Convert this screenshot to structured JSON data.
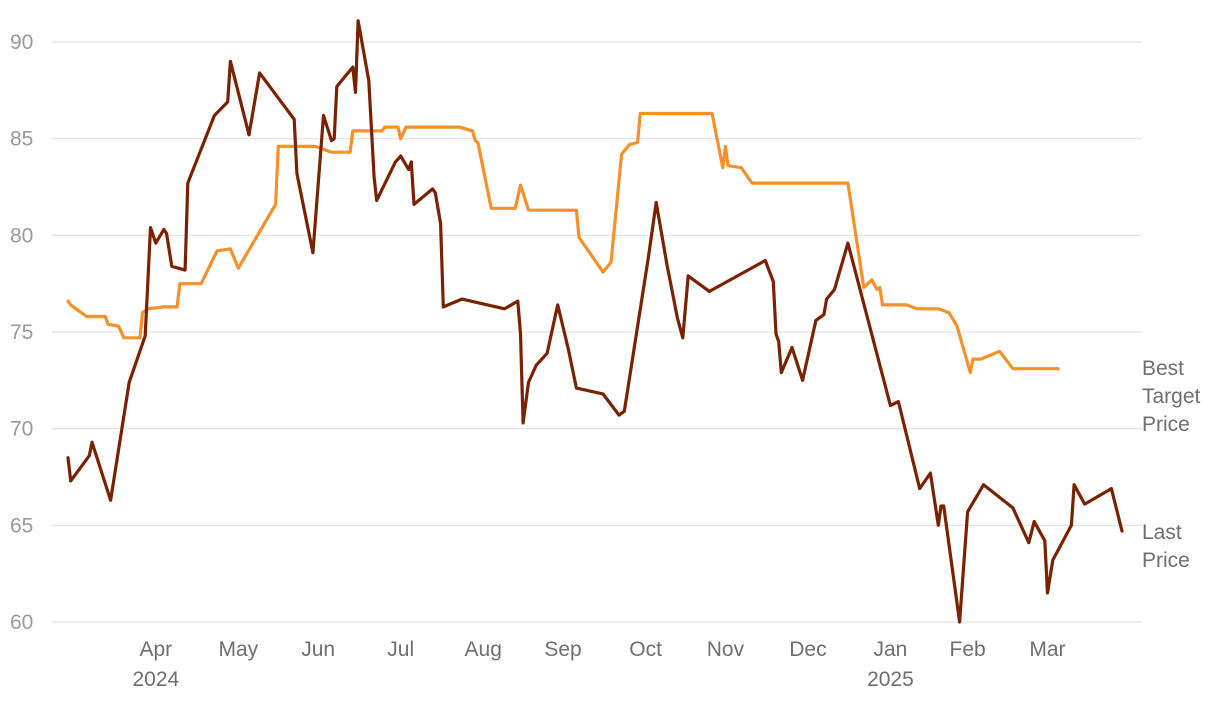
{
  "chart_data": {
    "type": "line",
    "ylim": [
      60,
      91
    ],
    "y_ticks": [
      "90",
      "85",
      "80",
      "75",
      "70",
      "65",
      "60"
    ],
    "x_ticks": [
      {
        "label": "Apr",
        "sub": "2024"
      },
      {
        "label": "May",
        "sub": ""
      },
      {
        "label": "Jun",
        "sub": ""
      },
      {
        "label": "Jul",
        "sub": ""
      },
      {
        "label": "Aug",
        "sub": ""
      },
      {
        "label": "Sep",
        "sub": ""
      },
      {
        "label": "Oct",
        "sub": ""
      },
      {
        "label": "Nov",
        "sub": ""
      },
      {
        "label": "Dec",
        "sub": ""
      },
      {
        "label": "Jan",
        "sub": "2025"
      },
      {
        "label": "Feb",
        "sub": ""
      },
      {
        "label": "Mar",
        "sub": ""
      }
    ],
    "grid": true,
    "legend_position": "right, inline at series end",
    "series": [
      {
        "name": "Best Target Price",
        "legend_lines": [
          "Best",
          "Target",
          "Price"
        ],
        "color": "#f5902a",
        "points": [
          [
            "2024-03-13",
            76.6
          ],
          [
            "2024-03-14",
            76.4
          ],
          [
            "2024-03-20",
            75.8
          ],
          [
            "2024-03-27",
            75.8
          ],
          [
            "2024-03-28",
            75.4
          ],
          [
            "2024-04-01",
            75.3
          ],
          [
            "2024-04-03",
            74.7
          ],
          [
            "2024-04-09",
            74.7
          ],
          [
            "2024-04-10",
            76.0
          ],
          [
            "2024-04-12",
            76.2
          ],
          [
            "2024-04-18",
            76.3
          ],
          [
            "2024-04-23",
            76.3
          ],
          [
            "2024-04-24",
            77.5
          ],
          [
            "2024-05-02",
            77.5
          ],
          [
            "2024-05-08",
            79.2
          ],
          [
            "2024-05-13",
            79.3
          ],
          [
            "2024-05-16",
            78.3
          ],
          [
            "2024-05-30",
            81.6
          ],
          [
            "2024-05-31",
            84.6
          ],
          [
            "2024-06-14",
            84.6
          ],
          [
            "2024-06-20",
            84.3
          ],
          [
            "2024-06-27",
            84.3
          ],
          [
            "2024-06-28",
            85.4
          ],
          [
            "2024-07-09",
            85.4
          ],
          [
            "2024-07-10",
            85.6
          ],
          [
            "2024-07-15",
            85.6
          ],
          [
            "2024-07-16",
            85.0
          ],
          [
            "2024-07-18",
            85.6
          ],
          [
            "2024-08-07",
            85.6
          ],
          [
            "2024-08-12",
            85.4
          ],
          [
            "2024-08-13",
            84.9
          ],
          [
            "2024-08-14",
            84.8
          ],
          [
            "2024-08-19",
            81.4
          ],
          [
            "2024-08-28",
            81.4
          ],
          [
            "2024-08-30",
            82.6
          ],
          [
            "2024-09-02",
            81.3
          ],
          [
            "2024-09-20",
            81.3
          ],
          [
            "2024-09-21",
            79.9
          ],
          [
            "2024-09-30",
            78.1
          ],
          [
            "2024-10-03",
            78.6
          ],
          [
            "2024-10-07",
            84.2
          ],
          [
            "2024-10-10",
            84.7
          ],
          [
            "2024-10-13",
            84.8
          ],
          [
            "2024-10-14",
            86.3
          ],
          [
            "2024-11-10",
            86.3
          ],
          [
            "2024-11-14",
            83.5
          ],
          [
            "2024-11-15",
            84.6
          ],
          [
            "2024-11-16",
            83.6
          ],
          [
            "2024-11-21",
            83.5
          ],
          [
            "2024-11-25",
            82.7
          ],
          [
            "2024-12-31",
            82.7
          ],
          [
            "2025-01-06",
            77.3
          ],
          [
            "2025-01-09",
            77.7
          ],
          [
            "2025-01-11",
            77.2
          ],
          [
            "2025-01-12",
            77.3
          ],
          [
            "2025-01-13",
            76.4
          ],
          [
            "2025-01-22",
            76.4
          ],
          [
            "2025-01-26",
            76.2
          ],
          [
            "2025-02-03",
            76.2
          ],
          [
            "2025-02-07",
            76.0
          ],
          [
            "2025-02-10",
            75.3
          ],
          [
            "2025-02-15",
            72.9
          ],
          [
            "2025-02-16",
            73.6
          ],
          [
            "2025-02-19",
            73.6
          ],
          [
            "2025-02-26",
            74.0
          ],
          [
            "2025-03-03",
            73.1
          ],
          [
            "2025-03-20",
            73.1
          ]
        ]
      },
      {
        "name": "Last Price",
        "legend_lines": [
          "Last",
          "Price"
        ],
        "color": "#7a2200",
        "points": [
          [
            "2024-03-13",
            68.5
          ],
          [
            "2024-03-14",
            67.3
          ],
          [
            "2024-03-21",
            68.6
          ],
          [
            "2024-03-22",
            69.3
          ],
          [
            "2024-03-29",
            66.3
          ],
          [
            "2024-04-05",
            72.4
          ],
          [
            "2024-04-11",
            74.8
          ],
          [
            "2024-04-13",
            80.4
          ],
          [
            "2024-04-15",
            79.6
          ],
          [
            "2024-04-18",
            80.3
          ],
          [
            "2024-04-19",
            80.1
          ],
          [
            "2024-04-21",
            78.4
          ],
          [
            "2024-04-26",
            78.2
          ],
          [
            "2024-04-27",
            82.7
          ],
          [
            "2024-05-07",
            86.2
          ],
          [
            "2024-05-12",
            86.9
          ],
          [
            "2024-05-13",
            89.0
          ],
          [
            "2024-05-20",
            85.2
          ],
          [
            "2024-05-24",
            88.4
          ],
          [
            "2024-06-06",
            86.0
          ],
          [
            "2024-06-07",
            83.2
          ],
          [
            "2024-06-13",
            79.1
          ],
          [
            "2024-06-17",
            86.2
          ],
          [
            "2024-06-20",
            84.9
          ],
          [
            "2024-06-21",
            85.0
          ],
          [
            "2024-06-22",
            87.7
          ],
          [
            "2024-06-28",
            88.7
          ],
          [
            "2024-06-29",
            87.4
          ],
          [
            "2024-06-30",
            91.1
          ],
          [
            "2024-07-04",
            88.0
          ],
          [
            "2024-07-06",
            83.0
          ],
          [
            "2024-07-07",
            81.8
          ],
          [
            "2024-07-14",
            83.8
          ],
          [
            "2024-07-16",
            84.1
          ],
          [
            "2024-07-19",
            83.4
          ],
          [
            "2024-07-20",
            83.8
          ],
          [
            "2024-07-21",
            81.6
          ],
          [
            "2024-07-28",
            82.4
          ],
          [
            "2024-07-29",
            82.2
          ],
          [
            "2024-07-31",
            80.6
          ],
          [
            "2024-08-01",
            76.3
          ],
          [
            "2024-08-08",
            76.7
          ],
          [
            "2024-08-24",
            76.2
          ],
          [
            "2024-08-29",
            76.6
          ],
          [
            "2024-08-30",
            74.9
          ],
          [
            "2024-08-31",
            70.3
          ],
          [
            "2024-09-02",
            72.4
          ],
          [
            "2024-09-05",
            73.3
          ],
          [
            "2024-09-09",
            73.9
          ],
          [
            "2024-09-13",
            76.4
          ],
          [
            "2024-09-17",
            74.1
          ],
          [
            "2024-09-20",
            72.1
          ],
          [
            "2024-09-30",
            71.8
          ],
          [
            "2024-10-06",
            70.7
          ],
          [
            "2024-10-08",
            70.9
          ],
          [
            "2024-10-17",
            78.8
          ],
          [
            "2024-10-20",
            81.7
          ],
          [
            "2024-10-24",
            78.5
          ],
          [
            "2024-10-28",
            75.7
          ],
          [
            "2024-10-30",
            74.7
          ],
          [
            "2024-11-01",
            77.9
          ],
          [
            "2024-11-09",
            77.1
          ],
          [
            "2024-11-30",
            78.7
          ],
          [
            "2024-12-03",
            77.6
          ],
          [
            "2024-12-04",
            74.9
          ],
          [
            "2024-12-05",
            74.5
          ],
          [
            "2024-12-06",
            72.9
          ],
          [
            "2024-12-10",
            74.2
          ],
          [
            "2024-12-14",
            72.5
          ],
          [
            "2024-12-19",
            75.6
          ],
          [
            "2024-12-22",
            75.9
          ],
          [
            "2024-12-23",
            76.7
          ],
          [
            "2024-12-26",
            77.2
          ],
          [
            "2024-12-31",
            79.6
          ],
          [
            "2025-01-16",
            71.2
          ],
          [
            "2025-01-19",
            71.4
          ],
          [
            "2025-01-27",
            66.9
          ],
          [
            "2025-01-31",
            67.7
          ],
          [
            "2025-02-03",
            65.0
          ],
          [
            "2025-02-04",
            66.0
          ],
          [
            "2025-02-05",
            66.0
          ],
          [
            "2025-02-11",
            60.0
          ],
          [
            "2025-02-14",
            65.7
          ],
          [
            "2025-02-20",
            67.1
          ],
          [
            "2025-03-03",
            65.9
          ],
          [
            "2025-03-09",
            64.1
          ],
          [
            "2025-03-11",
            65.2
          ],
          [
            "2025-03-15",
            64.2
          ],
          [
            "2025-03-16",
            61.5
          ],
          [
            "2025-03-18",
            63.2
          ],
          [
            "2025-03-25",
            65.0
          ],
          [
            "2025-03-26",
            67.1
          ],
          [
            "2025-03-30",
            66.1
          ],
          [
            "2025-04-09",
            66.9
          ],
          [
            "2025-04-13",
            64.7
          ]
        ]
      }
    ]
  }
}
